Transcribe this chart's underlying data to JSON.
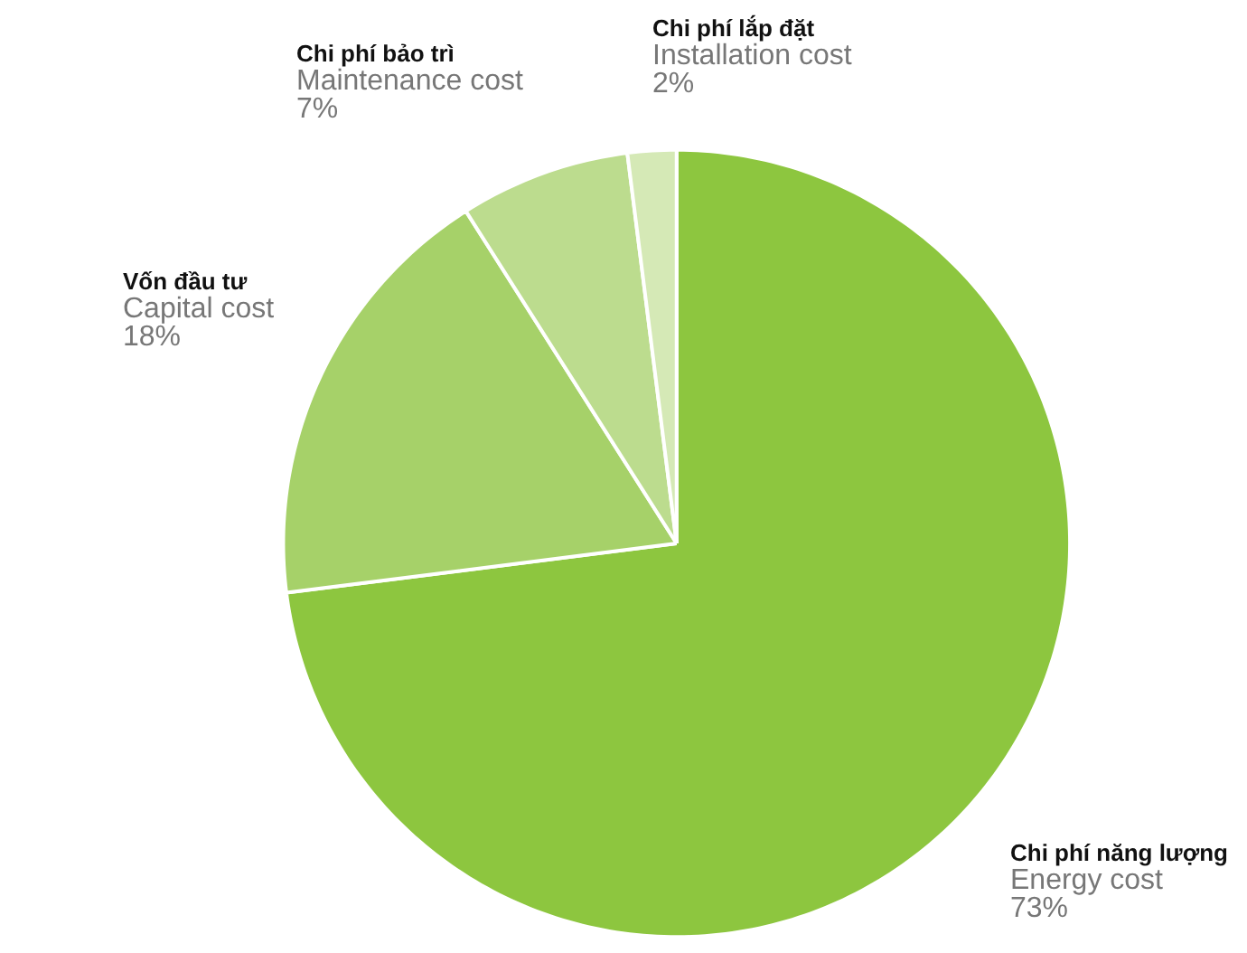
{
  "chart_data": {
    "type": "pie",
    "categories": [
      "Chi phí năng lượng\nEnergy cost",
      "Vốn đầu tư\nCapital cost",
      "Chi phí bảo trì\nMaintenance cost",
      "Chi phí lắp đặt\nInstallation cost"
    ],
    "values": [
      73,
      18,
      7,
      2
    ],
    "value_labels": [
      "73%",
      "18%",
      "7%",
      "2%"
    ],
    "colors": [
      "#8dc63f",
      "#a6d169",
      "#bcdc8e",
      "#d5e9b6"
    ],
    "legend": false
  }
}
